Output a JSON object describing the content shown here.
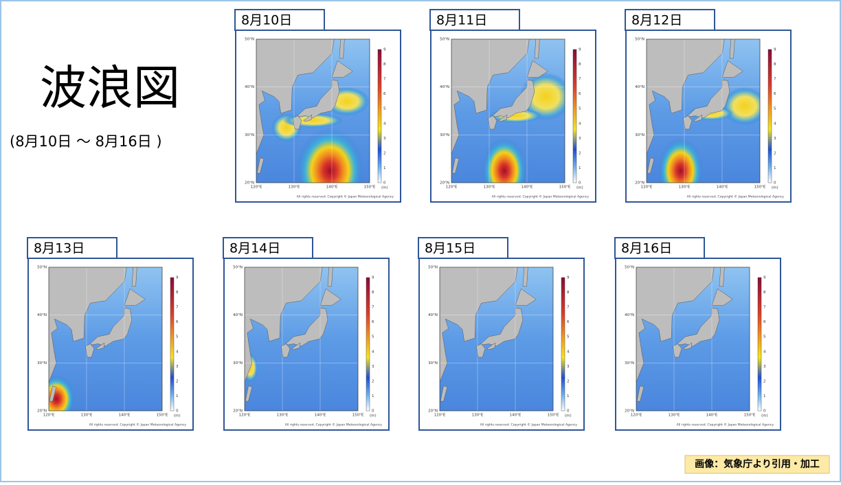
{
  "title": "波浪図",
  "period": "(8月10日 ～ 8月16日 )",
  "panels": [
    {
      "date": "8月10日"
    },
    {
      "date": "8月11日"
    },
    {
      "date": "8月12日"
    },
    {
      "date": "8月13日"
    },
    {
      "date": "8月14日"
    },
    {
      "date": "8月15日"
    },
    {
      "date": "8月16日"
    }
  ],
  "map": {
    "lat_labels": [
      "50°N",
      "40°N",
      "30°N",
      "20°N"
    ],
    "lon_labels": [
      "120°E",
      "130°E",
      "140°E",
      "150°E"
    ],
    "scale_labels": [
      0,
      1,
      2,
      3,
      4,
      5,
      6,
      7,
      8,
      9
    ],
    "unit": "(m)",
    "copyright": "All rights reserved. Copyright © Japan Meteorological Agency"
  },
  "credit": "画像：気象庁より引用・加工"
}
